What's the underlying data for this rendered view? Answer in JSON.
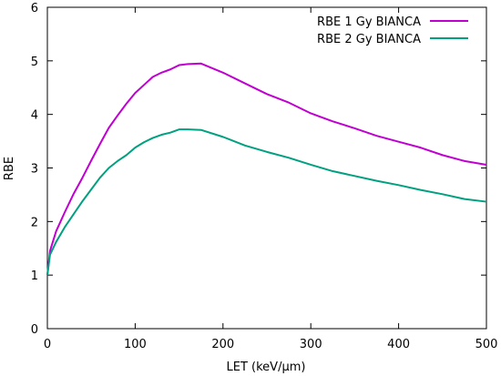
{
  "chart_data": {
    "type": "line",
    "xlabel": "LET (keV/µm)",
    "ylabel": "RBE",
    "xlim": [
      0,
      500
    ],
    "ylim": [
      0,
      6
    ],
    "xticks": [
      "0",
      "100",
      "200",
      "300",
      "400",
      "500"
    ],
    "yticks": [
      "0",
      "1",
      "2",
      "3",
      "4",
      "5",
      "6"
    ],
    "grid": false,
    "legend_position": "top-right",
    "series": [
      {
        "name": "RBE 1 Gy BIANCA",
        "color": "#c000d0",
        "x": [
          0,
          3,
          10,
          20,
          30,
          40,
          50,
          60,
          70,
          80,
          90,
          100,
          110,
          120,
          130,
          140,
          150,
          160,
          175,
          200,
          225,
          250,
          275,
          300,
          325,
          350,
          375,
          400,
          425,
          450,
          475,
          500
        ],
        "y": [
          1.0,
          1.45,
          1.82,
          2.18,
          2.52,
          2.82,
          3.14,
          3.45,
          3.75,
          3.98,
          4.2,
          4.4,
          4.55,
          4.7,
          4.78,
          4.84,
          4.92,
          4.94,
          4.95,
          4.78,
          4.58,
          4.38,
          4.22,
          4.02,
          3.87,
          3.74,
          3.6,
          3.49,
          3.38,
          3.24,
          3.13,
          3.06
        ]
      },
      {
        "name": "RBE 2 Gy BIANCA",
        "color": "#00a080",
        "x": [
          0,
          3,
          10,
          20,
          30,
          40,
          50,
          60,
          70,
          80,
          90,
          100,
          110,
          120,
          130,
          140,
          150,
          160,
          175,
          200,
          225,
          250,
          275,
          300,
          325,
          350,
          375,
          400,
          425,
          450,
          475,
          500
        ],
        "y": [
          1.0,
          1.38,
          1.62,
          1.9,
          2.14,
          2.38,
          2.6,
          2.82,
          3.0,
          3.13,
          3.24,
          3.38,
          3.48,
          3.56,
          3.62,
          3.66,
          3.72,
          3.72,
          3.71,
          3.58,
          3.42,
          3.3,
          3.19,
          3.06,
          2.94,
          2.85,
          2.76,
          2.68,
          2.59,
          2.51,
          2.42,
          2.37
        ]
      }
    ]
  }
}
